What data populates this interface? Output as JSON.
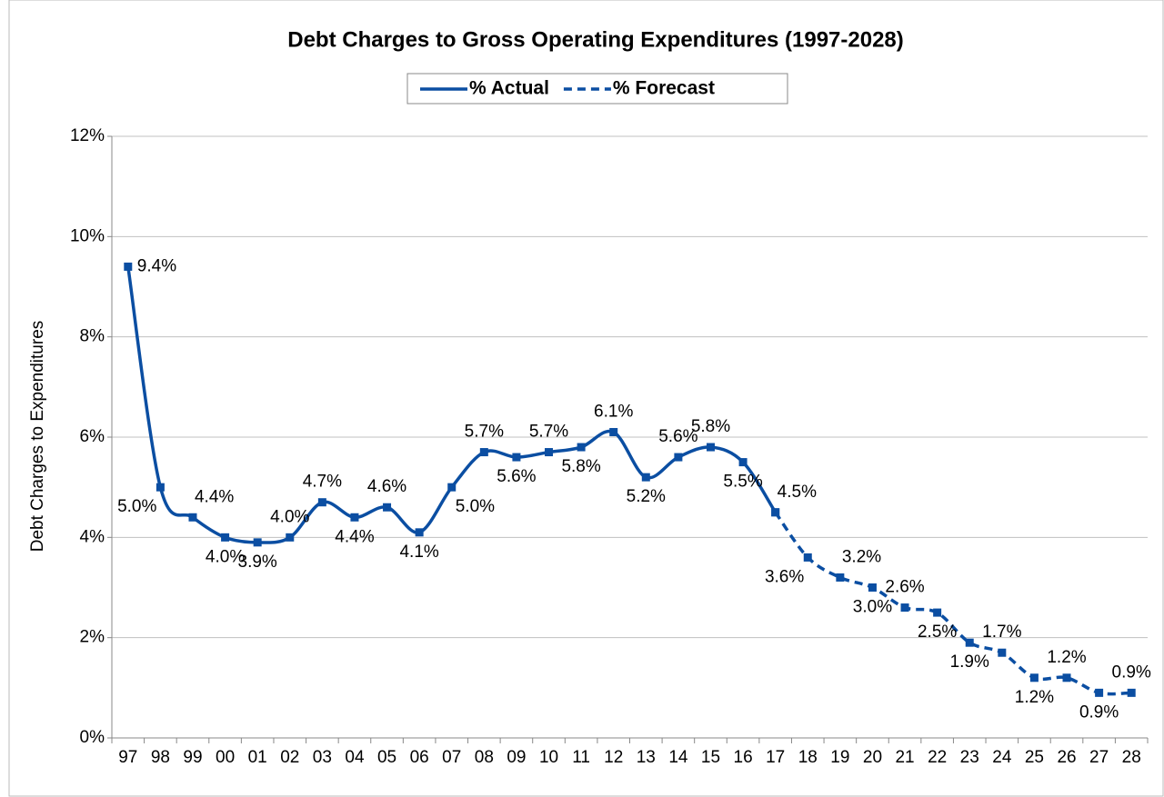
{
  "chart_data": {
    "type": "line",
    "title": "Debt Charges to Gross Operating Expenditures (1997-2028)",
    "y_label": "Debt Charges to Expenditures",
    "categories": [
      "97",
      "98",
      "99",
      "00",
      "01",
      "02",
      "03",
      "04",
      "05",
      "06",
      "07",
      "08",
      "09",
      "10",
      "11",
      "12",
      "13",
      "14",
      "15",
      "16",
      "17",
      "18",
      "19",
      "20",
      "21",
      "22",
      "23",
      "24",
      "25",
      "26",
      "27",
      "28"
    ],
    "series": [
      {
        "name": "% Actual",
        "color": "#0b4ea2",
        "dash": false,
        "values": [
          9.4,
          5.0,
          4.4,
          4.0,
          3.9,
          4.0,
          4.7,
          4.4,
          4.6,
          4.1,
          5.0,
          5.7,
          5.6,
          5.7,
          5.8,
          6.1,
          5.2,
          5.6,
          5.8,
          5.5,
          4.5,
          null,
          null,
          null,
          null,
          null,
          null,
          null,
          null,
          null,
          null,
          null
        ],
        "value_labels": [
          "9.4%",
          "5.0%",
          "4.4%",
          "4.0%",
          "3.9%",
          "4.0%",
          "4.7%",
          "4.4%",
          "4.6%",
          "4.1%",
          "5.0%",
          "5.7%",
          "5.6%",
          "5.7%",
          "5.8%",
          "6.1%",
          "5.2%",
          "5.6%",
          "5.8%",
          "5.5%",
          "4.5%",
          null,
          null,
          null,
          null,
          null,
          null,
          null,
          null,
          null,
          null,
          null
        ]
      },
      {
        "name": "% Forecast",
        "color": "#0b4ea2",
        "dash": true,
        "values": [
          null,
          null,
          null,
          null,
          null,
          null,
          null,
          null,
          null,
          null,
          null,
          null,
          null,
          null,
          null,
          null,
          null,
          null,
          null,
          null,
          4.5,
          3.6,
          3.2,
          3.0,
          2.6,
          2.5,
          1.9,
          1.7,
          1.2,
          1.2,
          0.9,
          0.9
        ],
        "value_labels": [
          null,
          null,
          null,
          null,
          null,
          null,
          null,
          null,
          null,
          null,
          null,
          null,
          null,
          null,
          null,
          null,
          null,
          null,
          null,
          null,
          null,
          "3.6%",
          "3.2%",
          "3.0%",
          "2.6%",
          "2.5%",
          "1.9%",
          "1.7%",
          "1.2%",
          "1.2%",
          "0.9%",
          "0.9%"
        ]
      }
    ],
    "ylim": [
      0,
      12
    ],
    "yticks": [
      {
        "value": 0,
        "label": "0%"
      },
      {
        "value": 2,
        "label": "2%"
      },
      {
        "value": 4,
        "label": "4%"
      },
      {
        "value": 6,
        "label": "6%"
      },
      {
        "value": 8,
        "label": "8%"
      },
      {
        "value": 10,
        "label": "10%"
      },
      {
        "value": 12,
        "label": "12%"
      }
    ],
    "grid": true,
    "legend": "top"
  }
}
